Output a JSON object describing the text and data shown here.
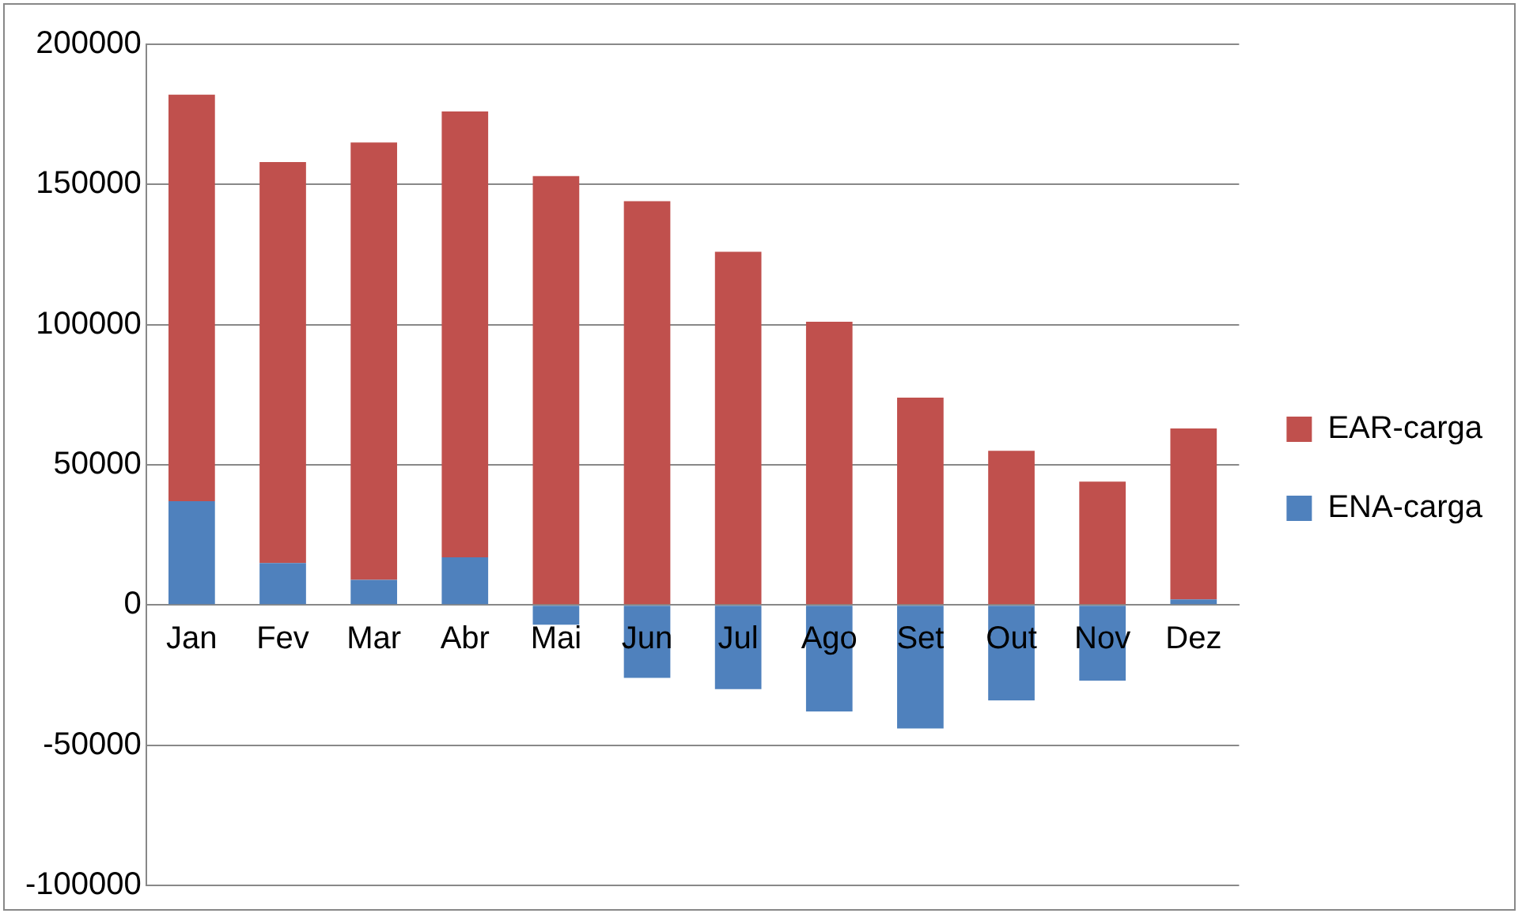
{
  "chart_data": {
    "type": "bar",
    "stacked": true,
    "categories": [
      "Jan",
      "Fev",
      "Mar",
      "Abr",
      "Mai",
      "Jun",
      "Jul",
      "Ago",
      "Set",
      "Out",
      "Nov",
      "Dez"
    ],
    "series": [
      {
        "name": "ENA-carga",
        "color": "#4f81bd",
        "values": [
          37000,
          15000,
          9000,
          17000,
          -7000,
          -26000,
          -30000,
          -38000,
          -44000,
          -34000,
          -27000,
          2000
        ]
      },
      {
        "name": "EAR-carga",
        "color": "#c0504d",
        "values": [
          145000,
          143000,
          156000,
          159000,
          153000,
          144000,
          126000,
          101000,
          74000,
          55000,
          44000,
          61000
        ]
      }
    ],
    "ylim": [
      -100000,
      200000
    ],
    "yticks": [
      -100000,
      -50000,
      0,
      50000,
      100000,
      150000,
      200000
    ],
    "grid": "y",
    "legend": "right"
  }
}
